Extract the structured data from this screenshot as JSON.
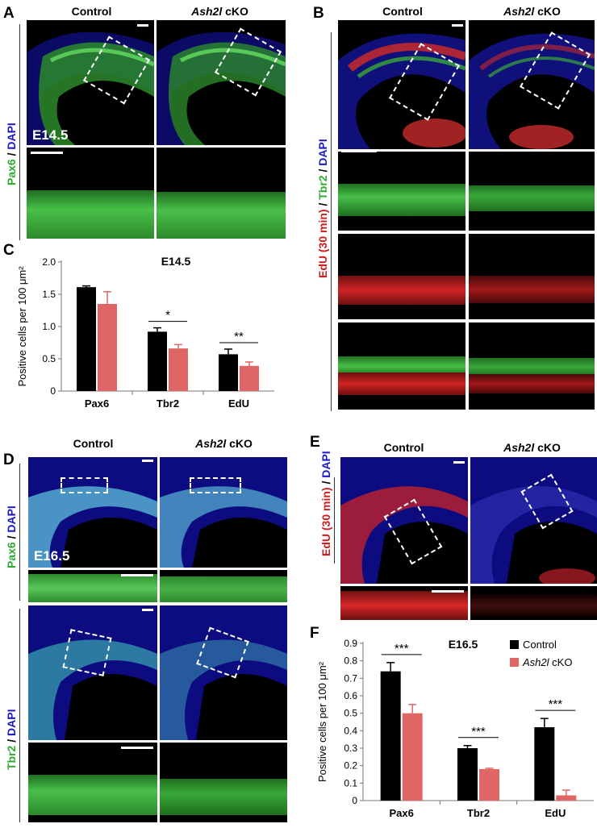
{
  "panels": {
    "A": {
      "letter": "A",
      "col_control": "Control",
      "col_cko_gene": "Ash2l",
      "col_cko_suffix": " cKO",
      "stain_green": "Pax6",
      "stain_sep": " / ",
      "stain_blue": "DAPI",
      "age": "E14.5"
    },
    "B": {
      "letter": "B",
      "col_control": "Control",
      "col_cko_gene": "Ash2l",
      "col_cko_suffix": " cKO",
      "stain_red": "EdU (30 min)",
      "stain_green": "Tbr2",
      "stain_sep": " / ",
      "stain_blue": "DAPI"
    },
    "D": {
      "letter": "D",
      "col_control": "Control",
      "col_cko_gene": "Ash2l",
      "col_cko_suffix": " cKO",
      "stain1_green": "Pax6",
      "stain2_green": "Tbr2",
      "stain_sep": " / ",
      "stain_blue": "DAPI",
      "age": "E16.5"
    },
    "E": {
      "letter": "E",
      "col_control": "Control",
      "col_cko_gene": "Ash2l",
      "col_cko_suffix": " cKO",
      "stain_red": "EdU (30 min)",
      "stain_sep": " / ",
      "stain_blue": "DAPI"
    },
    "C": {
      "letter": "C"
    },
    "F": {
      "letter": "F"
    }
  },
  "colors": {
    "control": "#000000",
    "cko": "#e06666",
    "green": "#2eaa2e",
    "red": "#d01c1c",
    "blue": "#1a1acc"
  },
  "chart_data": [
    {
      "type": "bar",
      "panel": "C",
      "title": "E14.5",
      "ylabel": "Positive cells per 100 μm²",
      "categories": [
        "Pax6",
        "Tbr2",
        "EdU"
      ],
      "ylim": [
        0,
        2.0
      ],
      "yticks": [
        "0",
        "0.5",
        "1.0",
        "1.5",
        "2.0"
      ],
      "ytick_values": [
        0,
        0.5,
        1.0,
        1.5,
        2.0
      ],
      "series": [
        {
          "values": [
            1.61,
            0.92,
            0.57
          ],
          "errors": [
            0.02,
            0.06,
            0.08
          ]
        },
        {
          "values": [
            1.35,
            0.66,
            0.39
          ],
          "errors": [
            0.19,
            0.06,
            0.06
          ]
        }
      ],
      "significance": [
        {
          "category": 1,
          "label": "*"
        },
        {
          "category": 2,
          "label": "**"
        }
      ]
    },
    {
      "type": "bar",
      "panel": "F",
      "title": "E16.5",
      "ylabel": "Positive cells per 100 μm²",
      "categories": [
        "Pax6",
        "Tbr2",
        "EdU"
      ],
      "ylim": [
        0,
        0.9
      ],
      "yticks": [
        "0",
        "0.1",
        "0.2",
        "0.3",
        "0.4",
        "0.5",
        "0.6",
        "0.7",
        "0.8",
        "0.9"
      ],
      "ytick_values": [
        0,
        0.1,
        0.2,
        0.3,
        0.4,
        0.5,
        0.6,
        0.7,
        0.8,
        0.9
      ],
      "series": [
        {
          "name": "Control",
          "values": [
            0.74,
            0.3,
            0.42
          ],
          "errors": [
            0.05,
            0.015,
            0.05
          ]
        },
        {
          "name_gene": "Ash2l",
          "name_suffix": " cKO",
          "values": [
            0.5,
            0.18,
            0.03
          ],
          "errors": [
            0.05,
            0.005,
            0.03
          ]
        }
      ],
      "significance": [
        {
          "category": 0,
          "label": "***"
        },
        {
          "category": 1,
          "label": "***"
        },
        {
          "category": 2,
          "label": "***"
        }
      ],
      "legend": "top-right"
    }
  ]
}
